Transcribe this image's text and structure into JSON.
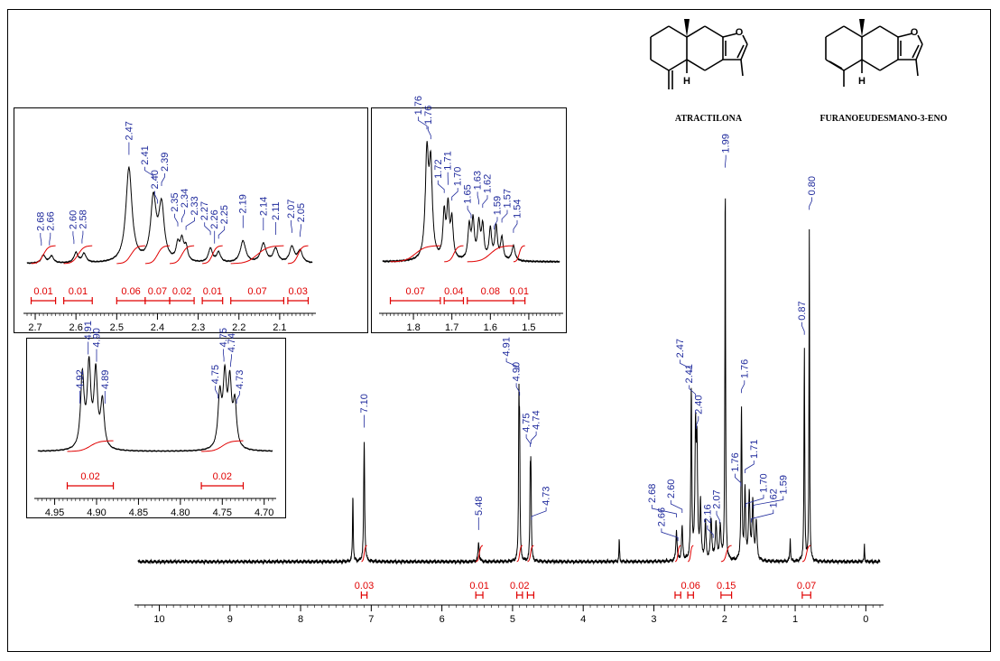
{
  "chart_data": [
    {
      "type": "line",
      "id": "main",
      "xlim": [
        10.3,
        -0.2
      ],
      "ticks": [
        10,
        9,
        8,
        7,
        6,
        5,
        4,
        3,
        2,
        1,
        0
      ],
      "minor_step": 0.1,
      "peaks": [
        {
          "x": 7.26,
          "h": 0.18,
          "w": 0.006
        },
        {
          "x": 7.1,
          "h": 0.32,
          "w": 0.008
        },
        {
          "x": 5.48,
          "h": 0.05,
          "w": 0.01
        },
        {
          "x": 4.91,
          "h": 0.39,
          "w": 0.006
        },
        {
          "x": 4.9,
          "h": 0.3,
          "w": 0.006
        },
        {
          "x": 4.75,
          "h": 0.21,
          "w": 0.006
        },
        {
          "x": 4.74,
          "h": 0.22,
          "w": 0.006
        },
        {
          "x": 3.49,
          "h": 0.06,
          "w": 0.005
        },
        {
          "x": 2.68,
          "h": 0.08,
          "w": 0.01
        },
        {
          "x": 2.6,
          "h": 0.09,
          "w": 0.01
        },
        {
          "x": 2.47,
          "h": 0.45,
          "w": 0.008
        },
        {
          "x": 2.41,
          "h": 0.33,
          "w": 0.01
        },
        {
          "x": 2.39,
          "h": 0.28,
          "w": 0.01
        },
        {
          "x": 2.34,
          "h": 0.15,
          "w": 0.01
        },
        {
          "x": 2.27,
          "h": 0.1,
          "w": 0.01
        },
        {
          "x": 2.19,
          "h": 0.11,
          "w": 0.012
        },
        {
          "x": 2.12,
          "h": 0.1,
          "w": 0.012
        },
        {
          "x": 2.06,
          "h": 0.09,
          "w": 0.012
        },
        {
          "x": 1.99,
          "h": 1.0,
          "w": 0.006
        },
        {
          "x": 1.76,
          "h": 0.4,
          "w": 0.008
        },
        {
          "x": 1.71,
          "h": 0.18,
          "w": 0.01
        },
        {
          "x": 1.65,
          "h": 0.17,
          "w": 0.012
        },
        {
          "x": 1.6,
          "h": 0.15,
          "w": 0.012
        },
        {
          "x": 1.55,
          "h": 0.1,
          "w": 0.012
        },
        {
          "x": 1.07,
          "h": 0.06,
          "w": 0.006
        },
        {
          "x": 0.87,
          "h": 0.56,
          "w": 0.006
        },
        {
          "x": 0.8,
          "h": 0.89,
          "w": 0.005
        },
        {
          "x": 0.02,
          "h": 0.05,
          "w": 0.004
        }
      ],
      "peak_labels": [
        {
          "text": "7.10",
          "x": 7.1
        },
        {
          "text": "5.48",
          "x": 5.48
        },
        {
          "text": "4.91",
          "x": 4.91
        },
        {
          "text": "4.90",
          "x": 4.9
        },
        {
          "text": "4.75",
          "x": 4.75
        },
        {
          "text": "4.74",
          "x": 4.74
        },
        {
          "text": "4.73",
          "x": 4.73
        },
        {
          "text": "2.68",
          "x": 2.68
        },
        {
          "text": "2.66",
          "x": 2.66
        },
        {
          "text": "2.60",
          "x": 2.6
        },
        {
          "text": "2.47",
          "x": 2.47
        },
        {
          "text": "2.41",
          "x": 2.41
        },
        {
          "text": "2.40",
          "x": 2.4
        },
        {
          "text": "2.16",
          "x": 2.16
        },
        {
          "text": "2.07",
          "x": 2.07
        },
        {
          "text": "1.99",
          "x": 1.99
        },
        {
          "text": "1.76",
          "x": 1.77
        },
        {
          "text": "1.76",
          "x": 1.76
        },
        {
          "text": "1.71",
          "x": 1.71
        },
        {
          "text": "1.70",
          "x": 1.7
        },
        {
          "text": "1.62",
          "x": 1.62
        },
        {
          "text": "1.59",
          "x": 1.59
        },
        {
          "text": "0.87",
          "x": 0.87
        },
        {
          "text": "0.80",
          "x": 0.8
        }
      ],
      "integrals": [
        {
          "from": 7.14,
          "to": 7.06,
          "value": "0.03"
        },
        {
          "from": 5.52,
          "to": 5.42,
          "value": "0.01"
        },
        {
          "from": 4.94,
          "to": 4.86,
          "value": "0.02"
        },
        {
          "from": 4.79,
          "to": 4.7,
          "value": ""
        },
        {
          "from": 2.7,
          "to": 2.62,
          "value": ""
        },
        {
          "from": 2.52,
          "to": 2.44,
          "value": "0.06"
        },
        {
          "from": 2.05,
          "to": 1.9,
          "value": "0.15"
        },
        {
          "from": 0.9,
          "to": 0.78,
          "value": "0.07"
        }
      ]
    },
    {
      "type": "line",
      "id": "inset1",
      "xlim": [
        2.72,
        2.02
      ],
      "ticks": [
        2.7,
        2.6,
        2.5,
        2.4,
        2.3,
        2.2,
        2.1
      ],
      "tick_labels": [
        "2.7",
        "2.6",
        "2.5",
        "2.4",
        "2.3",
        "2.2",
        "2.1"
      ],
      "minor_step": 0.01,
      "peaks": [
        {
          "x": 2.68,
          "h": 0.08,
          "w": 0.006
        },
        {
          "x": 2.66,
          "h": 0.07,
          "w": 0.006
        },
        {
          "x": 2.6,
          "h": 0.1,
          "w": 0.006
        },
        {
          "x": 2.58,
          "h": 0.09,
          "w": 0.006
        },
        {
          "x": 2.47,
          "h": 0.95,
          "w": 0.009
        },
        {
          "x": 2.41,
          "h": 0.62,
          "w": 0.008
        },
        {
          "x": 2.39,
          "h": 0.55,
          "w": 0.008
        },
        {
          "x": 2.35,
          "h": 0.16,
          "w": 0.005
        },
        {
          "x": 2.34,
          "h": 0.2,
          "w": 0.005
        },
        {
          "x": 2.33,
          "h": 0.14,
          "w": 0.005
        },
        {
          "x": 2.27,
          "h": 0.14,
          "w": 0.006
        },
        {
          "x": 2.25,
          "h": 0.1,
          "w": 0.006
        },
        {
          "x": 2.19,
          "h": 0.22,
          "w": 0.008
        },
        {
          "x": 2.14,
          "h": 0.19,
          "w": 0.008
        },
        {
          "x": 2.11,
          "h": 0.14,
          "w": 0.007
        },
        {
          "x": 2.07,
          "h": 0.16,
          "w": 0.007
        },
        {
          "x": 2.05,
          "h": 0.12,
          "w": 0.007
        }
      ],
      "peak_labels": [
        {
          "text": "2.68",
          "x": 2.685
        },
        {
          "text": "2.66",
          "x": 2.665
        },
        {
          "text": "2.60",
          "x": 2.605
        },
        {
          "text": "2.58",
          "x": 2.585
        },
        {
          "text": "2.47",
          "x": 2.47
        },
        {
          "text": "2.41",
          "x": 2.41
        },
        {
          "text": "2.40",
          "x": 2.4
        },
        {
          "text": "2.39",
          "x": 2.39
        },
        {
          "text": "2.35",
          "x": 2.35
        },
        {
          "text": "2.34",
          "x": 2.34
        },
        {
          "text": "2.33",
          "x": 2.33
        },
        {
          "text": "2.27",
          "x": 2.27
        },
        {
          "text": "2.26",
          "x": 2.26
        },
        {
          "text": "2.25",
          "x": 2.25
        },
        {
          "text": "2.19",
          "x": 2.19
        },
        {
          "text": "2.14",
          "x": 2.14
        },
        {
          "text": "2.11",
          "x": 2.11
        },
        {
          "text": "2.07",
          "x": 2.07
        },
        {
          "text": "2.05",
          "x": 2.05
        }
      ],
      "integrals": [
        {
          "from": 2.71,
          "to": 2.65,
          "value": "0.01"
        },
        {
          "from": 2.63,
          "to": 2.56,
          "value": "0.01"
        },
        {
          "from": 2.5,
          "to": 2.43,
          "value": "0.06"
        },
        {
          "from": 2.43,
          "to": 2.37,
          "value": "0.07"
        },
        {
          "from": 2.37,
          "to": 2.31,
          "value": "0.02"
        },
        {
          "from": 2.29,
          "to": 2.24,
          "value": "0.01"
        },
        {
          "from": 2.22,
          "to": 2.09,
          "value": "0.07"
        },
        {
          "from": 2.08,
          "to": 2.03,
          "value": "0.03"
        }
      ]
    },
    {
      "type": "line",
      "id": "inset2",
      "xlim": [
        1.88,
        1.42
      ],
      "ticks": [
        1.8,
        1.7,
        1.6,
        1.5
      ],
      "tick_labels": [
        "1.8",
        "1.7",
        "1.6",
        "1.5"
      ],
      "minor_step": 0.01,
      "peaks": [
        {
          "x": 1.765,
          "h": 0.8,
          "w": 0.005
        },
        {
          "x": 1.755,
          "h": 0.7,
          "w": 0.005
        },
        {
          "x": 1.72,
          "h": 0.35,
          "w": 0.004
        },
        {
          "x": 1.71,
          "h": 0.4,
          "w": 0.004
        },
        {
          "x": 1.7,
          "h": 0.3,
          "w": 0.004
        },
        {
          "x": 1.655,
          "h": 0.26,
          "w": 0.004
        },
        {
          "x": 1.645,
          "h": 0.3,
          "w": 0.004
        },
        {
          "x": 1.63,
          "h": 0.28,
          "w": 0.004
        },
        {
          "x": 1.62,
          "h": 0.26,
          "w": 0.004
        },
        {
          "x": 1.6,
          "h": 0.24,
          "w": 0.004
        },
        {
          "x": 1.585,
          "h": 0.26,
          "w": 0.004
        },
        {
          "x": 1.57,
          "h": 0.18,
          "w": 0.004
        },
        {
          "x": 1.54,
          "h": 0.12,
          "w": 0.005
        }
      ],
      "peak_labels": [
        {
          "text": "1.76",
          "x": 1.765
        },
        {
          "text": "1.76",
          "x": 1.755
        },
        {
          "text": "1.72",
          "x": 1.72
        },
        {
          "text": "1.71",
          "x": 1.71
        },
        {
          "text": "1.70",
          "x": 1.7
        },
        {
          "text": "1.65",
          "x": 1.65
        },
        {
          "text": "1.63",
          "x": 1.63
        },
        {
          "text": "1.62",
          "x": 1.62
        },
        {
          "text": "1.59",
          "x": 1.59
        },
        {
          "text": "1.57",
          "x": 1.57
        },
        {
          "text": "1.54",
          "x": 1.54
        }
      ],
      "integrals": [
        {
          "from": 1.86,
          "to": 1.73,
          "value": "0.07"
        },
        {
          "from": 1.72,
          "to": 1.67,
          "value": "0.04"
        },
        {
          "from": 1.66,
          "to": 1.54,
          "value": "0.08"
        },
        {
          "from": 1.54,
          "to": 1.51,
          "value": "0.01"
        }
      ]
    },
    {
      "type": "line",
      "id": "inset3",
      "xlim": [
        4.97,
        4.69
      ],
      "ticks": [
        4.95,
        4.9,
        4.85,
        4.8,
        4.75,
        4.7
      ],
      "tick_labels": [
        "4.95",
        "4.90",
        "4.85",
        "4.80",
        "4.75",
        "4.70"
      ],
      "minor_step": 0.005,
      "peaks": [
        {
          "x": 4.917,
          "h": 0.7,
          "w": 0.0025
        },
        {
          "x": 4.909,
          "h": 0.78,
          "w": 0.0025
        },
        {
          "x": 4.901,
          "h": 0.72,
          "w": 0.0025
        },
        {
          "x": 4.893,
          "h": 0.45,
          "w": 0.0025
        },
        {
          "x": 4.753,
          "h": 0.5,
          "w": 0.0025
        },
        {
          "x": 4.747,
          "h": 0.65,
          "w": 0.0025
        },
        {
          "x": 4.741,
          "h": 0.6,
          "w": 0.0025
        },
        {
          "x": 4.735,
          "h": 0.42,
          "w": 0.0025
        }
      ],
      "peak_labels": [
        {
          "text": "4.92",
          "x": 4.92
        },
        {
          "text": "4.91",
          "x": 4.91
        },
        {
          "text": "4.90",
          "x": 4.9
        },
        {
          "text": "4.89",
          "x": 4.89
        },
        {
          "text": "4.75",
          "x": 4.755
        },
        {
          "text": "4.75",
          "x": 4.748
        },
        {
          "text": "4.74",
          "x": 4.74
        },
        {
          "text": "4.73",
          "x": 4.733
        }
      ],
      "integrals": [
        {
          "from": 4.935,
          "to": 4.88,
          "value": "0.02"
        },
        {
          "from": 4.775,
          "to": 4.725,
          "value": "0.02"
        }
      ]
    }
  ],
  "structures": {
    "left_name": "ATRACTILONA",
    "right_name": "FURANOEUDESMANO-3-ENO",
    "oxygen": "O",
    "hydrogen": "H"
  },
  "colors": {
    "spectrum": "#000000",
    "labels": "#1f2a9c",
    "integral": "#e00000"
  }
}
